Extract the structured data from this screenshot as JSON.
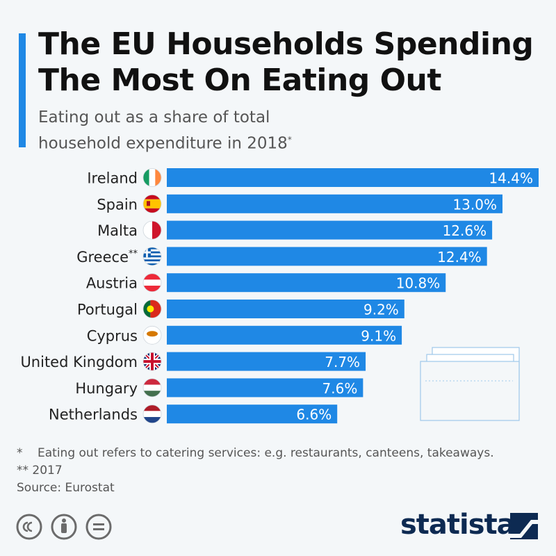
{
  "header": {
    "title_line1": "The EU Households Spending",
    "title_line2": "The Most On Eating Out",
    "subtitle_line1": "Eating out as a share of total",
    "subtitle_line2": "household expenditure in 2018",
    "subtitle_mark": "*"
  },
  "colors": {
    "accent": "#1f88e5",
    "bar": "#1f88e5",
    "title": "#111111",
    "text": "#555555",
    "logo": "#0d2a52"
  },
  "chart_data": {
    "type": "bar",
    "orientation": "horizontal",
    "categories": [
      "Ireland",
      "Spain",
      "Malta",
      "Greece**",
      "Austria",
      "Portugal",
      "Cyprus",
      "United Kingdom",
      "Hungary",
      "Netherlands"
    ],
    "values": [
      14.4,
      13.0,
      12.6,
      12.4,
      10.8,
      9.2,
      9.1,
      7.7,
      7.6,
      6.6
    ],
    "value_labels": [
      "14.4%",
      "13.0%",
      "12.6%",
      "12.4%",
      "10.8%",
      "9.2%",
      "9.1%",
      "7.7%",
      "7.6%",
      "6.6%"
    ],
    "unit": "%",
    "xlim": [
      0,
      14.4
    ],
    "grid": false,
    "legend": "none",
    "flag_icons": [
      "ireland-flag-icon",
      "spain-flag-icon",
      "malta-flag-icon",
      "greece-flag-icon",
      "austria-flag-icon",
      "portugal-flag-icon",
      "cyprus-flag-icon",
      "united-kingdom-flag-icon",
      "hungary-flag-icon",
      "netherlands-flag-icon"
    ]
  },
  "footnotes": {
    "note1_mark": "*",
    "note1_text": "Eating out refers to catering services: e.g. restaurants, canteens, takeaways.",
    "note2": "** 2017",
    "source": "Source: Eurostat"
  },
  "branding": {
    "logo_text": "statista",
    "license_icons": [
      "cc-icon",
      "by-icon",
      "nd-icon"
    ]
  }
}
